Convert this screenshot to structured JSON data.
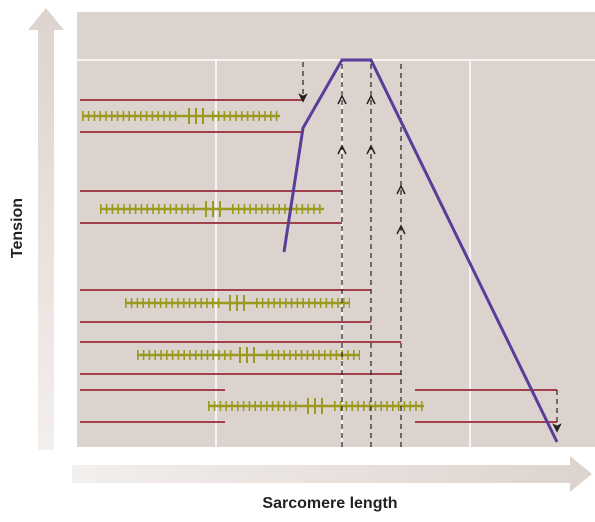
{
  "axes": {
    "y_label": "Tension",
    "x_label": "Sarcomere length"
  }
}
